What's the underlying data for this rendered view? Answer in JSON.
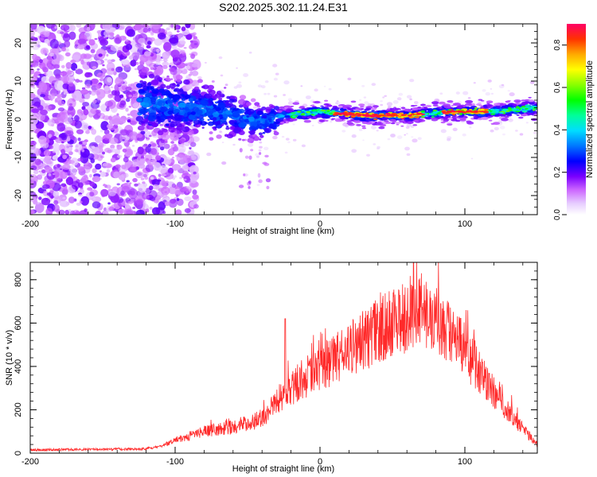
{
  "title": "S202.2025.302.11.24.E31",
  "chart_data": [
    {
      "type": "heatmap",
      "xlabel": "Height of straight line (km)",
      "ylabel": "Frequency (Hz)",
      "xlim": [
        -200,
        150
      ],
      "ylim": [
        -25,
        25
      ],
      "x_ticks": [
        -200,
        -100,
        0,
        100
      ],
      "y_ticks": [
        -20,
        -10,
        0,
        10,
        20
      ],
      "colorbar": {
        "label": "Normalized spectral amplitude",
        "range": [
          0,
          0.9
        ],
        "ticks": [
          0.0,
          0.2,
          0.4,
          0.6,
          0.8
        ],
        "colors": [
          "#ffffff",
          "#cc66ff",
          "#6600ff",
          "#0000ff",
          "#00aaff",
          "#00ffff",
          "#00ff66",
          "#66ff00",
          "#ffff00",
          "#ffaa00",
          "#ff3333",
          "#ff0066"
        ]
      },
      "ridge": {
        "description_points": [
          [
            -120,
            4
          ],
          [
            -90,
            3
          ],
          [
            -60,
            1
          ],
          [
            -40,
            -1
          ],
          [
            -25,
            1
          ],
          [
            0,
            2
          ],
          [
            30,
            1
          ],
          [
            60,
            1
          ],
          [
            90,
            2
          ],
          [
            120,
            2
          ],
          [
            150,
            3
          ]
        ]
      }
    },
    {
      "type": "line",
      "xlabel": "Height of straight line (km)",
      "ylabel": "SNR (10 * v/v)",
      "xlim": [
        -200,
        150
      ],
      "ylim": [
        0,
        880
      ],
      "x_ticks": [
        -200,
        -100,
        0,
        100
      ],
      "y_ticks": [
        0,
        200,
        400,
        600,
        800
      ],
      "color": "#ff2a2a",
      "envelope": {
        "x": [
          -200,
          -150,
          -120,
          -110,
          -100,
          -80,
          -60,
          -40,
          -30,
          -20,
          -10,
          0,
          20,
          40,
          60,
          70,
          80,
          100,
          120,
          140,
          150
        ],
        "y": [
          15,
          18,
          20,
          30,
          60,
          100,
          120,
          160,
          240,
          300,
          350,
          380,
          480,
          560,
          640,
          660,
          620,
          470,
          280,
          110,
          40
        ]
      }
    }
  ]
}
